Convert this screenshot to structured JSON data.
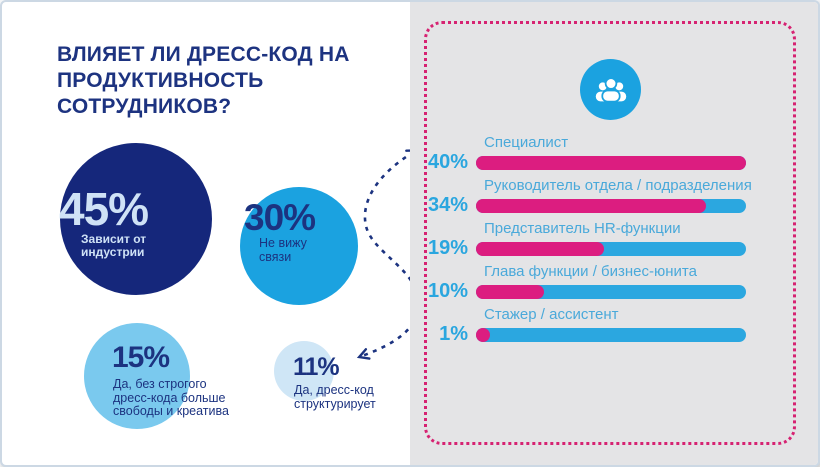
{
  "header": {
    "title_lines": [
      "ВЛИЯЕТ ЛИ ДРЕСС-КОД НА",
      "ПРОДУКТИВНОСТЬ СОТРУДНИКОВ?"
    ]
  },
  "bubbles": [
    {
      "value": "45%",
      "label": "Зависит от индустрии"
    },
    {
      "value": "30%",
      "label": "Не вижу связи"
    },
    {
      "value": "15%",
      "label": "Да, без строгого дресс-кода больше свободы и креатива"
    },
    {
      "value": "11%",
      "label": "Да, дресс-код структурирует"
    }
  ],
  "panel": {
    "icon": "people-group",
    "max_value": 40,
    "rows": [
      {
        "value": 40,
        "value_label": "40%",
        "label": "Специалист"
      },
      {
        "value": 34,
        "value_label": "34%",
        "label": "Руководитель отдела / подразделения"
      },
      {
        "value": 19,
        "value_label": "19%",
        "label": "Представитель HR-функции"
      },
      {
        "value": 10,
        "value_label": "10%",
        "label": "Глава функции / бизнес-юнита"
      },
      {
        "value": 1,
        "value_label": "1%",
        "label": "Стажер / ассистент"
      }
    ]
  },
  "colors": {
    "navy": "#15277b",
    "title_navy": "#1d3380",
    "bright_blue": "#1ba2e0",
    "light_blue": "#7ac9ee",
    "pale_blue": "#cfe6f6",
    "bubble_text_light": "#cfe2f6",
    "pink": "#dc1d80",
    "dotted_border_pink": "#d62272",
    "panel_gray": "#e4e4e6"
  },
  "chart_data": [
    {
      "type": "pie",
      "layout": "proportional bubbles, left half of infographic",
      "title": "ВЛИЯЕТ ЛИ ДРЕСС-КОД НА ПРОДУКТИВНОСТЬ СОТРУДНИКОВ?",
      "categories": [
        "Зависит от индустрии",
        "Не вижу связи",
        "Да, без строгого дресс-кода больше свободы и креатива",
        "Да, дресс-код структурирует"
      ],
      "values": [
        45,
        30,
        15,
        11
      ],
      "unit": "%"
    },
    {
      "type": "bar",
      "layout": "horizontal bars in dotted pink frame, right half; pink fill over blue track, scaled to max 40",
      "categories": [
        "Специалист",
        "Руководитель отдела / подразделения",
        "Представитель HR-функции",
        "Глава функции / бизнес-юнита",
        "Стажер / ассистент"
      ],
      "values": [
        40,
        34,
        19,
        10,
        1
      ],
      "unit": "%",
      "xlim": [
        0,
        40
      ],
      "bar_fill_color": "#dc1d80",
      "bar_track_color": "#2ba7e0"
    }
  ]
}
